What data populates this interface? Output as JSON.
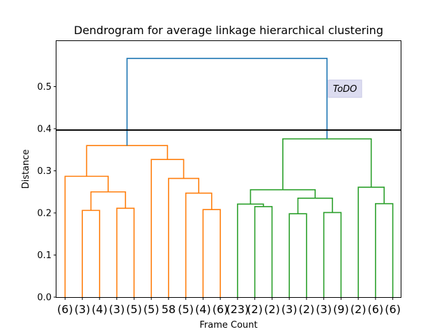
{
  "chart_data": {
    "type": "dendrogram",
    "title": "Dendrogram for average linkage hierarchical clustering",
    "xlabel": "Frame Count",
    "ylabel": "Distance",
    "ylim": [
      0,
      0.6
    ],
    "yticks": [
      "0.0",
      "0.1",
      "0.2",
      "0.3",
      "0.4",
      "0.5"
    ],
    "grid": false,
    "leaf_labels": [
      "(6)",
      "(3)",
      "(4)",
      "(3)",
      "(5)",
      "(5)",
      "58",
      "(5)",
      "(4)",
      "(6)",
      "(23)",
      "(2)",
      "(2)",
      "(3)",
      "(2)",
      "(3)",
      "(9)",
      "(2)",
      "(6)",
      "(6)"
    ],
    "threshold_line": 0.397,
    "annotation": "ToDO",
    "colors": {
      "cluster_1": "#ff7f0e",
      "cluster_2": "#2ca02c",
      "root": "#1f77b4",
      "threshold": "#000000",
      "annotation_bg": "#dcdcf0"
    },
    "links": [
      {
        "id": "O1",
        "left": 1,
        "right": 2,
        "height": 0.206,
        "color": "cluster_1"
      },
      {
        "id": "O2",
        "left": 3,
        "right": 4,
        "height": 0.211,
        "color": "cluster_1"
      },
      {
        "id": "O3",
        "left": "O1",
        "right": "O2",
        "height": 0.25,
        "color": "cluster_1"
      },
      {
        "id": "O4",
        "left": 0,
        "right": "O3",
        "height": 0.287,
        "color": "cluster_1"
      },
      {
        "id": "O5",
        "left": 8,
        "right": 9,
        "height": 0.208,
        "color": "cluster_1"
      },
      {
        "id": "O6",
        "left": 7,
        "right": "O5",
        "height": 0.247,
        "color": "cluster_1"
      },
      {
        "id": "O7",
        "left": 6,
        "right": "O6",
        "height": 0.282,
        "color": "cluster_1"
      },
      {
        "id": "O8",
        "left": 5,
        "right": "O7",
        "height": 0.327,
        "color": "cluster_1"
      },
      {
        "id": "O9",
        "left": "O4",
        "right": "O8",
        "height": 0.36,
        "color": "cluster_1"
      },
      {
        "id": "G1",
        "left": 11,
        "right": 12,
        "height": 0.215,
        "color": "cluster_2"
      },
      {
        "id": "G2",
        "left": 10,
        "right": "G1",
        "height": 0.221,
        "color": "cluster_2"
      },
      {
        "id": "G3",
        "left": 13,
        "right": 14,
        "height": 0.198,
        "color": "cluster_2"
      },
      {
        "id": "G4",
        "left": 15,
        "right": 16,
        "height": 0.201,
        "color": "cluster_2"
      },
      {
        "id": "G5",
        "left": "G3",
        "right": "G4",
        "height": 0.235,
        "color": "cluster_2"
      },
      {
        "id": "G6",
        "left": "G2",
        "right": "G5",
        "height": 0.255,
        "color": "cluster_2"
      },
      {
        "id": "G7",
        "left": 18,
        "right": 19,
        "height": 0.222,
        "color": "cluster_2"
      },
      {
        "id": "G8",
        "left": 17,
        "right": "G7",
        "height": 0.261,
        "color": "cluster_2"
      },
      {
        "id": "G9",
        "left": "G6",
        "right": "G8",
        "height": 0.376,
        "color": "cluster_2"
      },
      {
        "id": "R",
        "left": "O9",
        "right": "G9",
        "height": 0.567,
        "color": "root"
      }
    ]
  }
}
